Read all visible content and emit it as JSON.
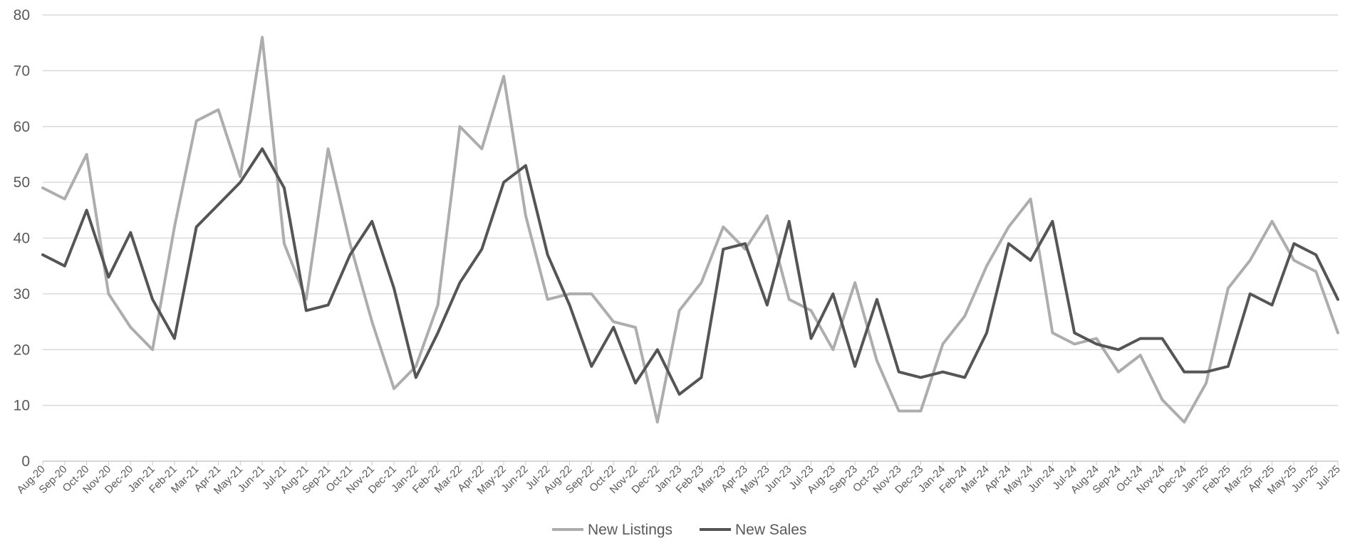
{
  "chart_data": {
    "type": "line",
    "title": "",
    "xlabel": "",
    "ylabel": "",
    "ylim": [
      0,
      80
    ],
    "yticks": [
      0,
      10,
      20,
      30,
      40,
      50,
      60,
      70,
      80
    ],
    "grid": true,
    "legend_position": "bottom",
    "categories": [
      "Aug-20",
      "Sep-20",
      "Oct-20",
      "Nov-20",
      "Dec-20",
      "Jan-21",
      "Feb-21",
      "Mar-21",
      "Apr-21",
      "May-21",
      "Jun-21",
      "Jul-21",
      "Aug-21",
      "Sep-21",
      "Oct-21",
      "Nov-21",
      "Dec-21",
      "Jan-22",
      "Feb-22",
      "Mar-22",
      "Apr-22",
      "May-22",
      "Jun-22",
      "Jul-22",
      "Aug-22",
      "Sep-22",
      "Oct-22",
      "Nov-22",
      "Dec-22",
      "Jan-23",
      "Feb-23",
      "Mar-23",
      "Apr-23",
      "May-23",
      "Jun-23",
      "Jul-23",
      "Aug-23",
      "Sep-23",
      "Oct-23",
      "Nov-23",
      "Dec-23",
      "Jan-24",
      "Feb-24",
      "Mar-24",
      "Apr-24",
      "May-24",
      "Jun-24",
      "Jul-24",
      "Aug-24",
      "Sep-24",
      "Oct-24",
      "Nov-24",
      "Dec-24",
      "Jan-25",
      "Feb-25",
      "Mar-25",
      "Apr-25",
      "May-25",
      "Jun-25",
      "Jul-25"
    ],
    "series": [
      {
        "name": "New Listings",
        "color": "#adadad",
        "values": [
          49,
          47,
          55,
          30,
          24,
          20,
          42,
          61,
          63,
          51,
          76,
          39,
          29,
          56,
          39,
          25,
          13,
          17,
          28,
          60,
          56,
          69,
          44,
          29,
          30,
          30,
          25,
          24,
          7,
          27,
          32,
          42,
          38,
          44,
          29,
          27,
          20,
          32,
          18,
          9,
          9,
          21,
          26,
          35,
          42,
          47,
          23,
          21,
          22,
          16,
          19,
          11,
          7,
          14,
          31,
          36,
          43,
          36,
          34,
          23
        ]
      },
      {
        "name": "New Sales",
        "color": "#555555",
        "values": [
          37,
          35,
          45,
          33,
          41,
          29,
          22,
          42,
          46,
          50,
          56,
          49,
          27,
          28,
          37,
          43,
          31,
          15,
          23,
          32,
          38,
          50,
          53,
          37,
          28,
          17,
          24,
          14,
          20,
          12,
          15,
          38,
          39,
          28,
          43,
          22,
          30,
          17,
          29,
          16,
          15,
          16,
          15,
          23,
          39,
          36,
          43,
          23,
          21,
          20,
          22,
          22,
          16,
          16,
          17,
          30,
          28,
          39,
          37,
          29
        ]
      }
    ]
  }
}
